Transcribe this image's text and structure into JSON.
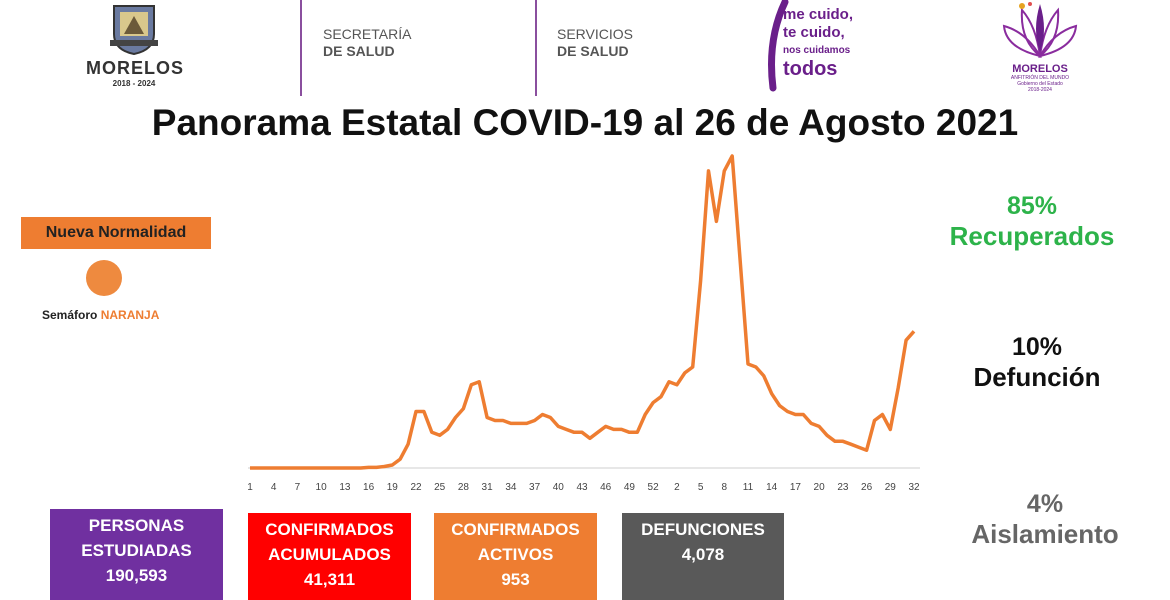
{
  "header": {
    "seal_title": "MORELOS",
    "seal_years": "2018 - 2024",
    "org1_line1": "SECRETARÍA",
    "org1_line2": "DE SALUD",
    "org2_line1": "SERVICIOS",
    "org2_line2": "DE SALUD",
    "slogan_line1": "me cuido,",
    "slogan_line2": "te cuido,",
    "slogan_line3": "nos cuidamos",
    "slogan_line4": "todos",
    "right_title": "MORELOS",
    "right_sub1": "ANFITRIÓN DEL MUNDO",
    "right_sub2": "Gobierno del Estado",
    "right_sub3": "2018-2024"
  },
  "left_panel": {
    "normalidad": "Nueva Normalidad",
    "semaforo_label": "Semáforo",
    "semaforo_level": "NARANJA",
    "semaforo_color": "#ee8a3f"
  },
  "stats": {
    "recovered_pct": "85%",
    "recovered_label": "Recuperados",
    "deaths_pct": "10%",
    "deaths_label": "Defunción",
    "isolation_pct": "4%",
    "isolation_label": "Aislamiento"
  },
  "boxes": [
    {
      "line1": "PERSONAS",
      "line2": "ESTUDIADAS",
      "value": "190,593",
      "bg": "#7030a0",
      "fg": "#ffffff"
    },
    {
      "line1": "CONFIRMADOS",
      "line2": "ACUMULADOS",
      "value": "41,311",
      "bg": "#ff0000",
      "fg": "#ffffff"
    },
    {
      "line1": "CONFIRMADOS",
      "line2": "ACTIVOS",
      "value": "953",
      "bg": "#ee7d31",
      "fg": "#ffffff"
    },
    {
      "line1": "DEFUNCIONES",
      "line2": "",
      "value": "4,078",
      "bg": "#595959",
      "fg": "#ffffff"
    }
  ],
  "chart_data": {
    "type": "line",
    "title": "Panorama Estatal COVID-19 al 26 de Agosto 2021",
    "line_color": "#ee7d31",
    "x_tick_labels": [
      "1",
      "4",
      "7",
      "10",
      "13",
      "16",
      "19",
      "22",
      "25",
      "28",
      "31",
      "34",
      "37",
      "40",
      "43",
      "46",
      "49",
      "52",
      "2",
      "5",
      "8",
      "11",
      "14",
      "17",
      "20",
      "23",
      "26",
      "29",
      "32"
    ],
    "values": [
      0.0,
      0.0,
      0.0,
      0.0,
      0.0,
      0.0,
      0.0,
      0.0,
      0.0,
      0.0,
      0.0,
      0.0,
      0.0,
      0.0,
      0.0,
      0.2,
      0.2,
      0.5,
      1.0,
      3.0,
      8.0,
      19.0,
      19.0,
      12.0,
      11.0,
      13.0,
      17.0,
      20.0,
      28.0,
      29.0,
      17.0,
      16.0,
      16.0,
      15.0,
      15.0,
      15.0,
      16.0,
      18.0,
      17.0,
      14.0,
      13.0,
      12.0,
      12.0,
      10.0,
      12.0,
      14.0,
      13.0,
      13.0,
      12.0,
      12.0,
      18.0,
      22.0,
      24.0,
      29.0,
      28.0,
      32.0,
      34.0,
      63.0,
      100.0,
      83.0,
      100.0,
      105.0,
      70.0,
      35.0,
      34.0,
      31.0,
      25.0,
      21.0,
      19.0,
      18.0,
      18.0,
      15.0,
      14.0,
      11.0,
      9.0,
      9.0,
      8.0,
      7.0,
      6.0,
      16.0,
      18.0,
      13.0,
      27.0,
      43.0,
      46.0
    ]
  }
}
